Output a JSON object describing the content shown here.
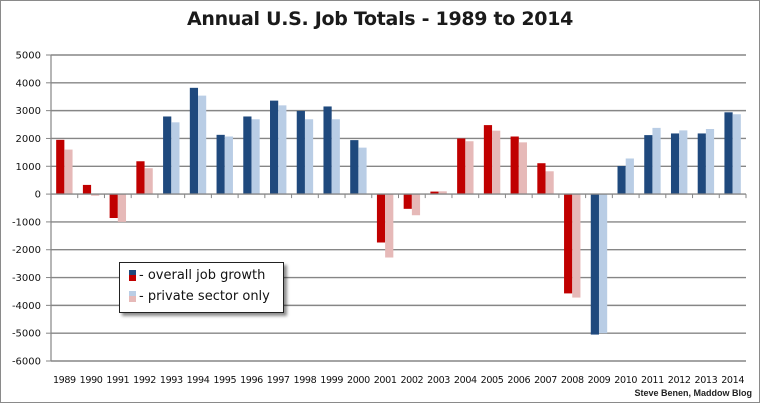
{
  "chart_data": {
    "type": "bar",
    "title": "Annual U.S. Job Totals - 1989 to 2014",
    "xlabel": "",
    "ylabel": "",
    "ylim": [
      -6000,
      5000
    ],
    "yticks": [
      5000,
      4000,
      3000,
      2000,
      1000,
      0,
      -1000,
      -2000,
      -3000,
      -4000,
      -5000,
      -6000
    ],
    "grid": true,
    "legend_position": "bottom-left",
    "categories": [
      "1989",
      "1990",
      "1991",
      "1992",
      "1993",
      "1994",
      "1995",
      "1996",
      "1997",
      "1998",
      "1999",
      "2000",
      "2001",
      "2002",
      "2003",
      "2004",
      "2005",
      "2006",
      "2007",
      "2008",
      "2009",
      "2010",
      "2011",
      "2012",
      "2013",
      "2014"
    ],
    "series": [
      {
        "name": "overall job growth",
        "values": [
          1950,
          330,
          -860,
          1180,
          2790,
          3820,
          2130,
          2790,
          3360,
          2990,
          3150,
          1940,
          -1740,
          -530,
          90,
          2000,
          2480,
          2070,
          1110,
          -3570,
          -5050,
          1010,
          2120,
          2180,
          2180,
          2940
        ]
      },
      {
        "name": "private sector only",
        "values": [
          1600,
          -60,
          -1000,
          930,
          2580,
          3540,
          2070,
          2690,
          3190,
          2690,
          2690,
          1670,
          -2280,
          -760,
          100,
          1900,
          2280,
          1860,
          820,
          -3720,
          -5000,
          1280,
          2380,
          2290,
          2340,
          2870
        ]
      }
    ],
    "party_by_year": [
      "R",
      "R",
      "R",
      "R",
      "D",
      "D",
      "D",
      "D",
      "D",
      "D",
      "D",
      "D",
      "R",
      "R",
      "R",
      "R",
      "R",
      "R",
      "R",
      "R",
      "D",
      "D",
      "D",
      "D",
      "D",
      "D"
    ],
    "colors": {
      "overall_R": "#c00000",
      "private_R": "#e6b9b8",
      "overall_D": "#1f497d",
      "private_D": "#b9cde5",
      "grid": "#868686",
      "axis": "#868686"
    }
  },
  "legend": {
    "items": [
      {
        "label": "- overall job growth",
        "swatch_top": "#1f497d",
        "swatch_bottom": "#c00000"
      },
      {
        "label": "- private sector only",
        "swatch_top": "#b9cde5",
        "swatch_bottom": "#e6b9b8"
      }
    ]
  },
  "credit": "Steve Benen, Maddow Blog"
}
